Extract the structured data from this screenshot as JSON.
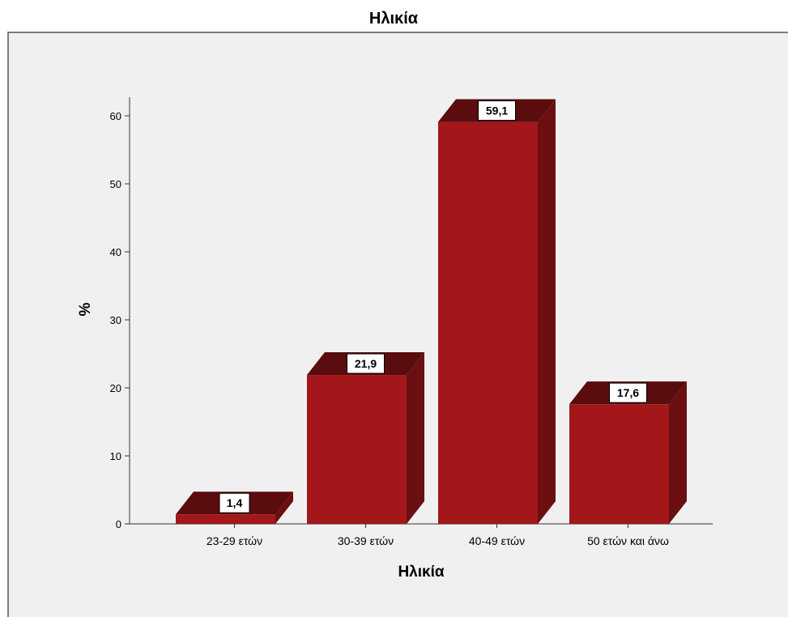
{
  "chart_data": {
    "type": "bar",
    "title": "Ηλικία",
    "xlabel": "Ηλικία",
    "ylabel": "%",
    "categories": [
      "23-29 ετών",
      "30-39 ετών",
      "40-49 ετών",
      "50 ετών και άνω"
    ],
    "values": [
      1.4,
      21.9,
      59.1,
      17.6
    ],
    "value_labels": [
      "1,4",
      "21,9",
      "59,1",
      "17,6"
    ],
    "ylim": [
      0,
      60
    ],
    "yticks": [
      "0",
      "10",
      "20",
      "30",
      "40",
      "50",
      "60"
    ],
    "style": "3d",
    "grid": false,
    "colors": {
      "bar_front": "#a3161a",
      "bar_side": "#6b0f11",
      "bar_top": "#5a0c0e",
      "plot_background": "#f0f0f0",
      "frame": "#555555"
    }
  }
}
